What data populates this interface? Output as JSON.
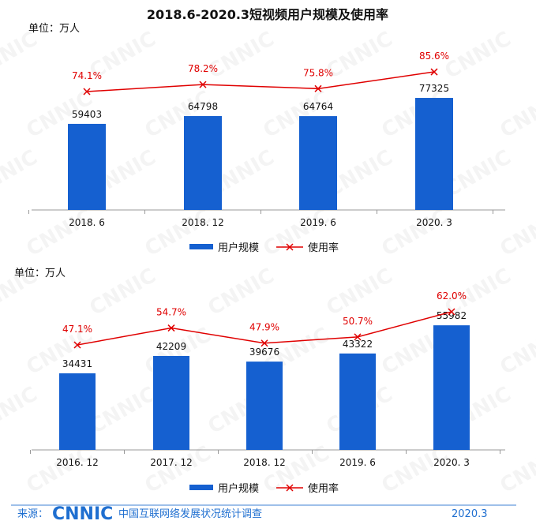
{
  "title": "2018.6-2020.3短视频用户规模及使用率",
  "colors": {
    "bar": "#1560d0",
    "line": "#e00000",
    "footer": "#1f6fd0"
  },
  "chart_data": [
    {
      "type": "bar",
      "unit": "单位：万人",
      "categories": [
        "2018. 6",
        "2018. 12",
        "2019. 6",
        "2020. 3"
      ],
      "series": [
        {
          "name": "用户规模",
          "type": "bar",
          "values": [
            59403,
            64798,
            64764,
            77325
          ],
          "labels": [
            "59403",
            "64798",
            "64764",
            "77325"
          ]
        },
        {
          "name": "使用率",
          "type": "line",
          "values": [
            74.1,
            78.2,
            75.8,
            85.6
          ],
          "labels": [
            "74.1%",
            "78.2%",
            "75.8%",
            "85.6%"
          ]
        }
      ],
      "legend": [
        "用户规模",
        "使用率"
      ],
      "legend_position": "bottom"
    },
    {
      "type": "bar",
      "unit": "单位：万人",
      "categories": [
        "2016. 12",
        "2017. 12",
        "2018. 12",
        "2019. 6",
        "2020. 3"
      ],
      "series": [
        {
          "name": "用户规模",
          "type": "bar",
          "values": [
            34431,
            42209,
            39676,
            43322,
            55982
          ],
          "labels": [
            "34431",
            "42209",
            "39676",
            "43322",
            "55982"
          ]
        },
        {
          "name": "使用率",
          "type": "line",
          "values": [
            47.1,
            54.7,
            47.9,
            50.7,
            62.0
          ],
          "labels": [
            "47.1%",
            "54.7%",
            "47.9%",
            "50.7%",
            "62.0%"
          ]
        }
      ],
      "legend": [
        "用户规模",
        "使用率"
      ],
      "legend_position": "bottom"
    }
  ],
  "footer": {
    "source_label": "来源：",
    "logo": "CNNIC",
    "org": "中国互联网络发展状况统计调查",
    "date": "2020.3"
  }
}
